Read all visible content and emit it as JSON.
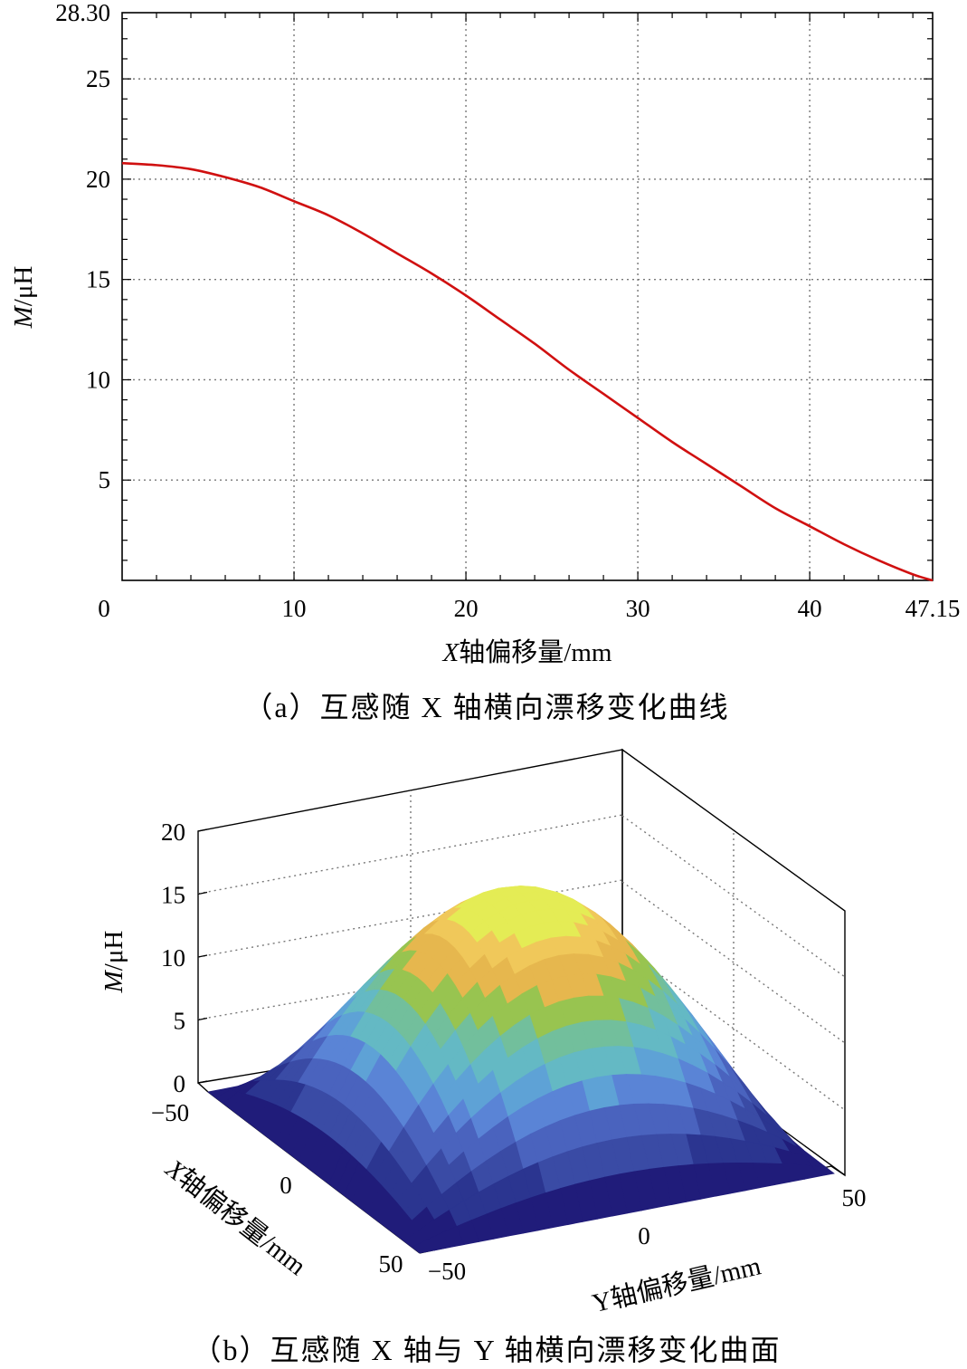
{
  "chart_data": [
    {
      "type": "line",
      "xlim": [
        0,
        47.15
      ],
      "ylim": [
        0,
        28.3
      ],
      "xticks": [
        "0",
        "10",
        "20",
        "30",
        "40",
        "47.15"
      ],
      "yticks": [
        "5",
        "10",
        "15",
        "20",
        "25",
        "28.30"
      ],
      "xlabel_var": "X",
      "xlabel": "轴偏移量/mm",
      "ylabel_var": "M",
      "ylabel": "/μH",
      "grid": true,
      "line_color": "#d01010",
      "x": [
        0,
        2,
        4,
        6,
        8,
        10,
        12,
        14,
        16,
        18,
        20,
        22,
        24,
        26,
        28,
        30,
        32,
        34,
        36,
        38,
        40,
        42,
        44,
        46,
        47.15
      ],
      "y": [
        20.8,
        20.7,
        20.5,
        20.1,
        19.6,
        18.9,
        18.2,
        17.3,
        16.3,
        15.3,
        14.2,
        13.0,
        11.8,
        10.5,
        9.3,
        8.1,
        6.9,
        5.8,
        4.7,
        3.6,
        2.7,
        1.8,
        1.0,
        0.3,
        0.0
      ],
      "caption": "（a）互感随 X 轴横向漂移变化曲线"
    },
    {
      "type": "surface",
      "zticks": [
        "0",
        "5",
        "10",
        "15",
        "20"
      ],
      "xticks": [
        "−50",
        "0",
        "50"
      ],
      "yticks": [
        "−50",
        "0",
        "50"
      ],
      "xlim": [
        -50,
        50
      ],
      "ylim": [
        -50,
        50
      ],
      "zlim": [
        0,
        20
      ],
      "zlabel_var": "M",
      "zlabel": "/μH",
      "xlabel_var": "X",
      "xlabel": "轴偏移量/mm",
      "ylabel_var": "Y",
      "ylabel": "轴偏移量/mm",
      "peak_value": 19,
      "band_colors": [
        "#201c7a",
        "#2b3590",
        "#3a4ba5",
        "#4a63be",
        "#5a84d6",
        "#5ea2d6",
        "#64b9c4",
        "#72bf9c",
        "#98c450",
        "#e6b74e",
        "#f0c85a",
        "#e4ec55"
      ],
      "caption": "（b）互感随 X 轴与 Y 轴横向漂移变化曲面"
    }
  ]
}
